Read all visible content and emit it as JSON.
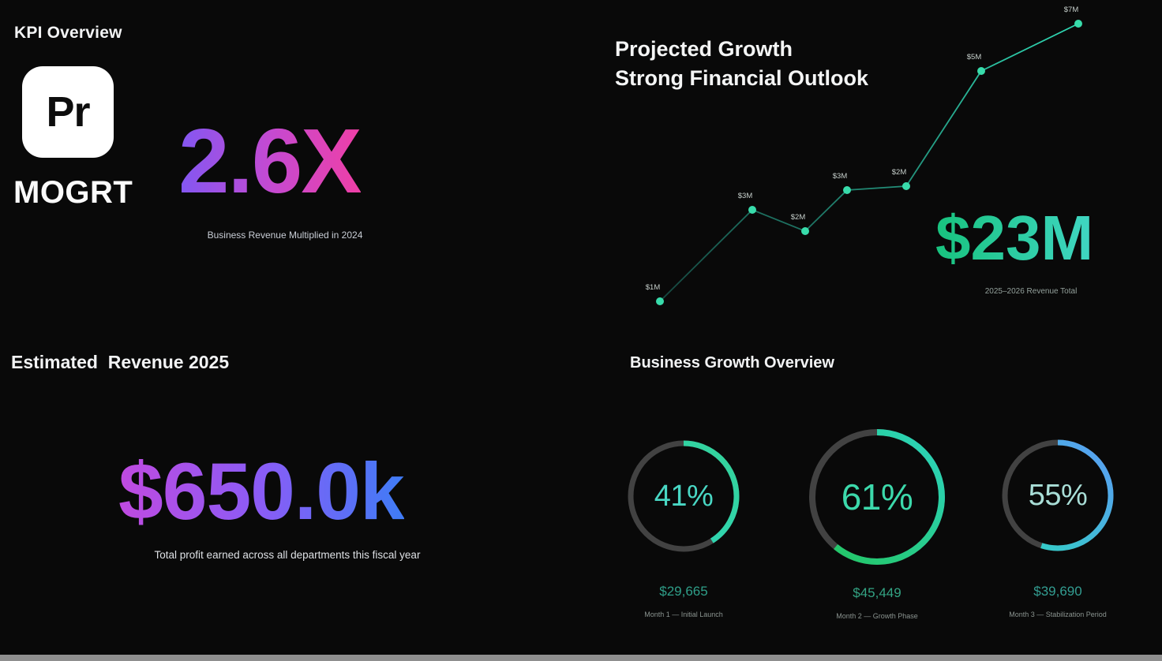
{
  "kpi": {
    "title": "KPI Overview",
    "logo_text": "Pr",
    "logo_label": "MOGRT",
    "multiplier": "2.6X",
    "multiplier_caption": "Business Revenue Multiplied in 2024"
  },
  "projected": {
    "title_line1": "Projected Growth",
    "title_line2": "Strong Financial Outlook",
    "total": "$23M",
    "total_caption": "2025–2026 Revenue Total"
  },
  "revenue": {
    "title": "Estimated  Revenue 2025",
    "amount": "$650.0k",
    "caption": "Total profit earned across all departments this fiscal year"
  },
  "growth": {
    "title": "Business Growth Overview"
  },
  "chart_data": [
    {
      "type": "line",
      "title": "Projected Growth — Strong Financial Outlook",
      "x": [
        1,
        2,
        3,
        4,
        5,
        6,
        7
      ],
      "values": [
        1,
        3,
        2,
        3,
        2,
        5,
        7
      ],
      "point_labels": [
        "$1M",
        "$3M",
        "$2M",
        "$3M",
        "$2M",
        "$5M",
        "$7M"
      ],
      "unit": "millions USD",
      "annotation": "$23M — 2025–2026 Revenue Total",
      "grid": false,
      "legend": false,
      "ylim": [
        0,
        8
      ]
    },
    {
      "type": "pie",
      "subtype": "donut-gauge-row",
      "title": "Business Growth Overview",
      "gauges": [
        {
          "percent": 41,
          "percent_label": "41%",
          "value": "$29,665",
          "label": "Month 1 — Initial Launch",
          "text_color": "#49d7c4",
          "value_color": "#2f9f89",
          "arc_from": "#2dd4bf",
          "arc_to": "#34d399"
        },
        {
          "percent": 61,
          "percent_label": "61%",
          "value": "$45,449",
          "label": "Month 2 — Growth Phase",
          "text_color": "#3cd9ab",
          "value_color": "#33a383",
          "arc_from": "#22c55e",
          "arc_to": "#2dd4bf"
        },
        {
          "percent": 55,
          "percent_label": "55%",
          "value": "$39,690",
          "label": "Month 3 — Stabilization Period",
          "text_color": "#a9ded7",
          "value_color": "#339e92",
          "arc_from": "#2dd4bf",
          "arc_to": "#5b9cf6"
        }
      ]
    }
  ],
  "palette": {
    "background": "#090909",
    "multiplier_gradient": [
      "#8257f2",
      "#c44ad2",
      "#ef3fa6"
    ],
    "total_gradient": [
      "#18c37e",
      "#40d6c3"
    ],
    "revenue_gradient": [
      "#c04ae0",
      "#8a5cf6",
      "#3f7cf6"
    ],
    "line_gradient": [
      "#16463f",
      "#2fd9b4"
    ],
    "dot_color": "#38dcab",
    "track_color": "#424242",
    "bottom_bar": "#8f8f8f"
  }
}
